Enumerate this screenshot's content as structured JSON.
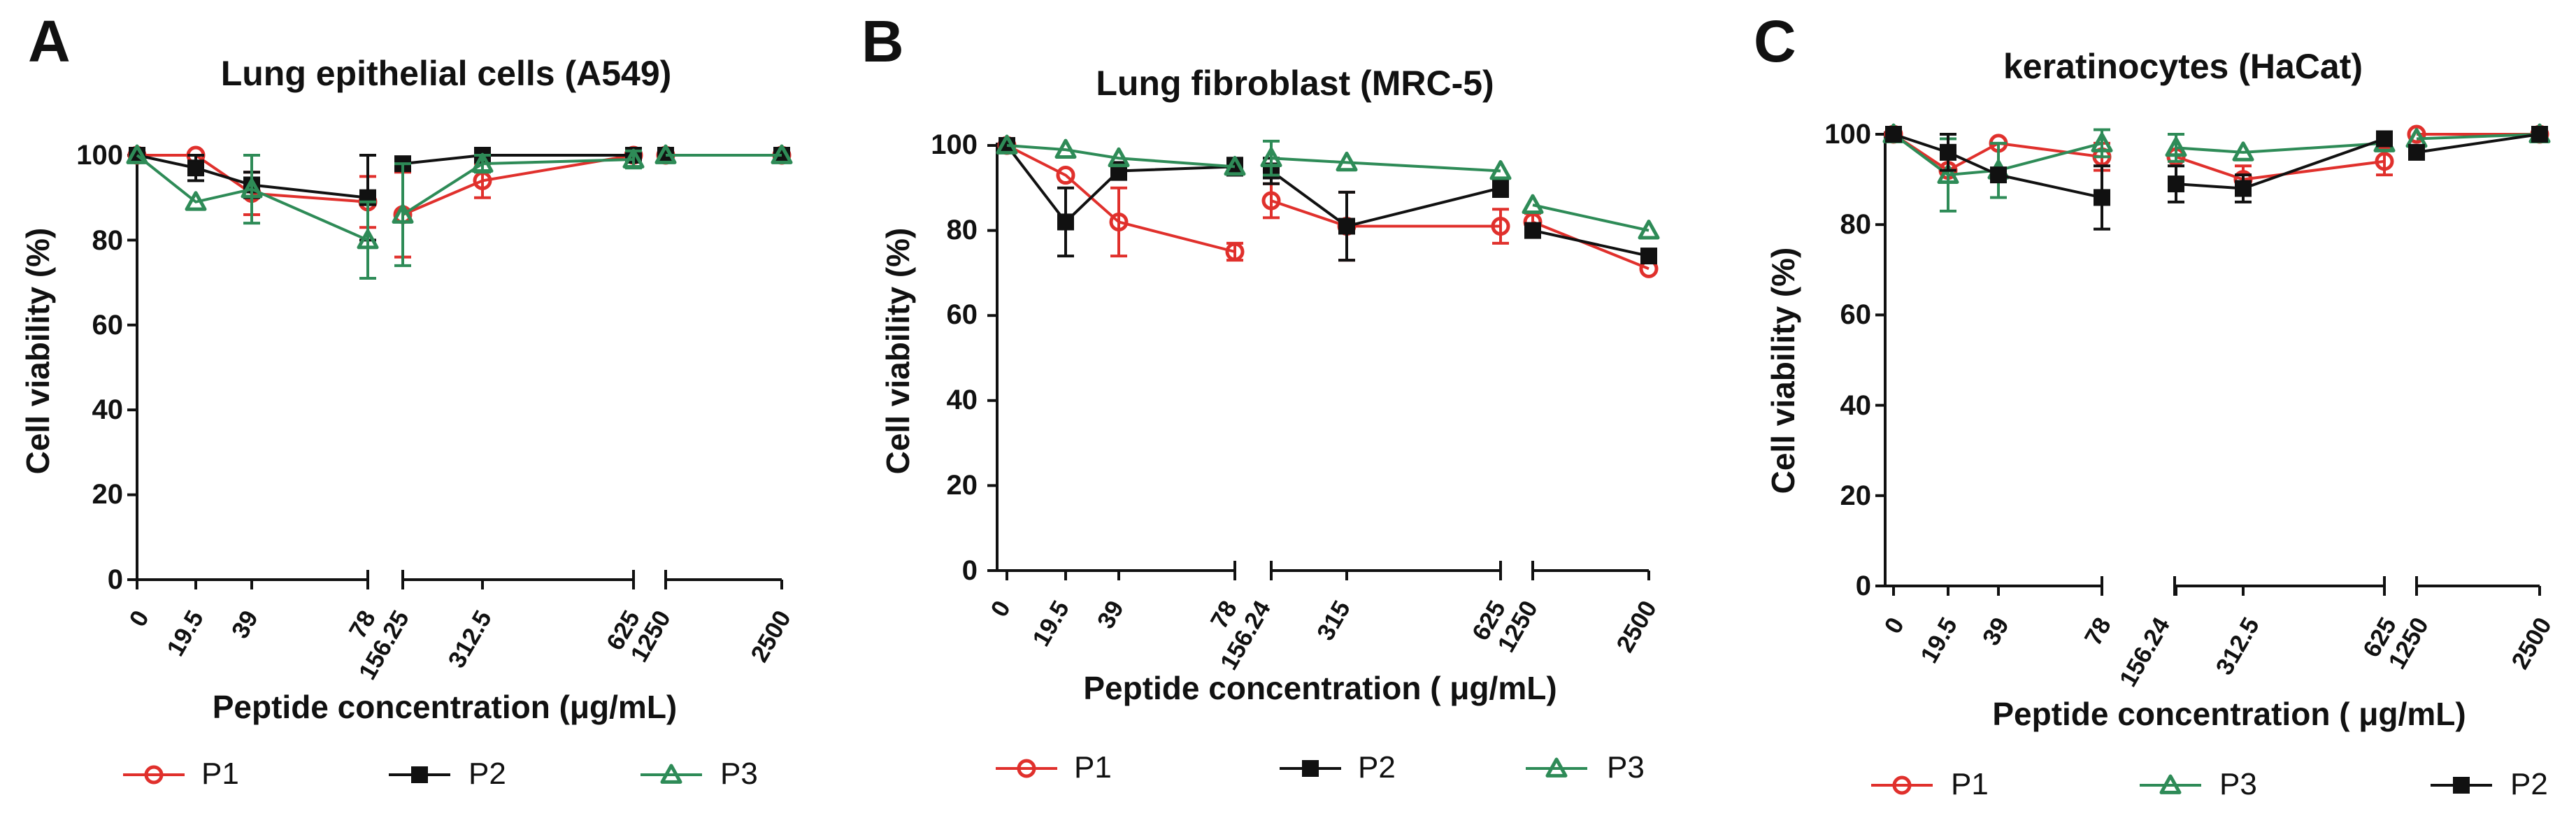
{
  "chart_data": [
    {
      "type": "line",
      "letter": "A",
      "title": "Lung  epithelial cells (A549)",
      "xlabel": "Peptide concentration (μg/mL)",
      "ylabel": "Cell viability (%)",
      "ylim": [
        0,
        100
      ],
      "yticks": [
        "0",
        "20",
        "40",
        "60",
        "80",
        "100"
      ],
      "x": [
        "0",
        "19.5",
        "39",
        "78",
        "156.25",
        "312.5",
        "625",
        "1250",
        "2500"
      ],
      "axis_breaks": [
        "78 | 156.25",
        "625 | 1250"
      ],
      "series": [
        {
          "name": "P1",
          "color": "#e0302c",
          "marker": "circle",
          "values": [
            100,
            100,
            91,
            89,
            86,
            94,
            100,
            100,
            100
          ],
          "errors": [
            0,
            0,
            5,
            6,
            10,
            4,
            0,
            0,
            0
          ]
        },
        {
          "name": "P2",
          "color": "#111111",
          "marker": "square",
          "values": [
            100,
            97,
            93,
            90,
            98,
            100,
            100,
            100,
            100
          ],
          "errors": [
            0,
            3,
            3,
            10,
            0,
            0,
            0,
            0,
            0
          ]
        },
        {
          "name": "P3",
          "color": "#2e8b57",
          "marker": "triangle",
          "values": [
            100,
            89,
            92,
            80,
            86,
            98,
            99,
            100,
            100
          ],
          "errors": [
            0,
            0,
            8,
            9,
            12,
            2,
            2,
            0,
            0
          ]
        }
      ],
      "legend_order": [
        "P1",
        "P2",
        "P3"
      ],
      "legend_position": "bottom"
    },
    {
      "type": "line",
      "letter": "B",
      "title": "Lung fibroblast (MRC-5)",
      "xlabel": "Peptide concentration ( μg/mL)",
      "ylabel": "Cell viability (%)",
      "ylim": [
        0,
        100
      ],
      "yticks": [
        "0",
        "20",
        "40",
        "60",
        "80",
        "100"
      ],
      "x": [
        "0",
        "19.5",
        "39",
        "78",
        "156.24",
        "315",
        "625",
        "1250",
        "2500"
      ],
      "axis_breaks": [
        "78 | 156.24",
        "625 | 1250"
      ],
      "series": [
        {
          "name": "P1",
          "color": "#e0302c",
          "marker": "circle",
          "values": [
            100,
            93,
            82,
            75,
            87,
            81,
            81,
            82,
            71
          ],
          "errors": [
            0,
            0,
            8,
            2,
            4,
            8,
            4,
            2,
            0
          ]
        },
        {
          "name": "P2",
          "color": "#111111",
          "marker": "square",
          "values": [
            100,
            82,
            94,
            95,
            94,
            81,
            90,
            80,
            74
          ],
          "errors": [
            0,
            8,
            2,
            2,
            3,
            8,
            2,
            0,
            0
          ]
        },
        {
          "name": "P3",
          "color": "#2e8b57",
          "marker": "triangle",
          "values": [
            100,
            99,
            97,
            95,
            97,
            96,
            94,
            86,
            80
          ],
          "errors": [
            0,
            0,
            0,
            0,
            4,
            0,
            0,
            0,
            0
          ]
        }
      ],
      "legend_order": [
        "P1",
        "P2",
        "P3"
      ],
      "legend_position": "bottom"
    },
    {
      "type": "line",
      "letter": "C",
      "title": "keratinocytes (HaCat)",
      "xlabel": "Peptide concentration ( μg/mL)",
      "ylabel": "Cell viability (%)",
      "ylim": [
        0,
        100
      ],
      "yticks": [
        "0",
        "20",
        "40",
        "60",
        "80",
        "100"
      ],
      "x": [
        "0",
        "19.5",
        "39",
        "78",
        "156.24",
        "312.5",
        "625",
        "1250",
        "2500"
      ],
      "axis_breaks": [
        "78 | 156.24",
        "625 | 1250"
      ],
      "series": [
        {
          "name": "P1",
          "color": "#e0302c",
          "marker": "circle",
          "values": [
            100,
            92,
            98,
            95,
            95,
            90,
            94,
            100,
            100
          ],
          "errors": [
            0,
            0,
            0,
            3,
            0,
            3,
            3,
            0,
            0
          ]
        },
        {
          "name": "P3",
          "color": "#2e8b57",
          "marker": "triangle",
          "values": [
            100,
            91,
            92,
            98,
            97,
            96,
            98,
            99,
            100
          ],
          "errors": [
            0,
            8,
            6,
            3,
            3,
            0,
            0,
            0,
            0
          ]
        },
        {
          "name": "P2",
          "color": "#111111",
          "marker": "square",
          "values": [
            100,
            96,
            91,
            86,
            89,
            88,
            99,
            96,
            100
          ],
          "errors": [
            0,
            4,
            0,
            7,
            4,
            3,
            0,
            0,
            0
          ]
        }
      ],
      "legend_order": [
        "P1",
        "P3",
        "P2"
      ],
      "legend_position": "bottom"
    }
  ]
}
